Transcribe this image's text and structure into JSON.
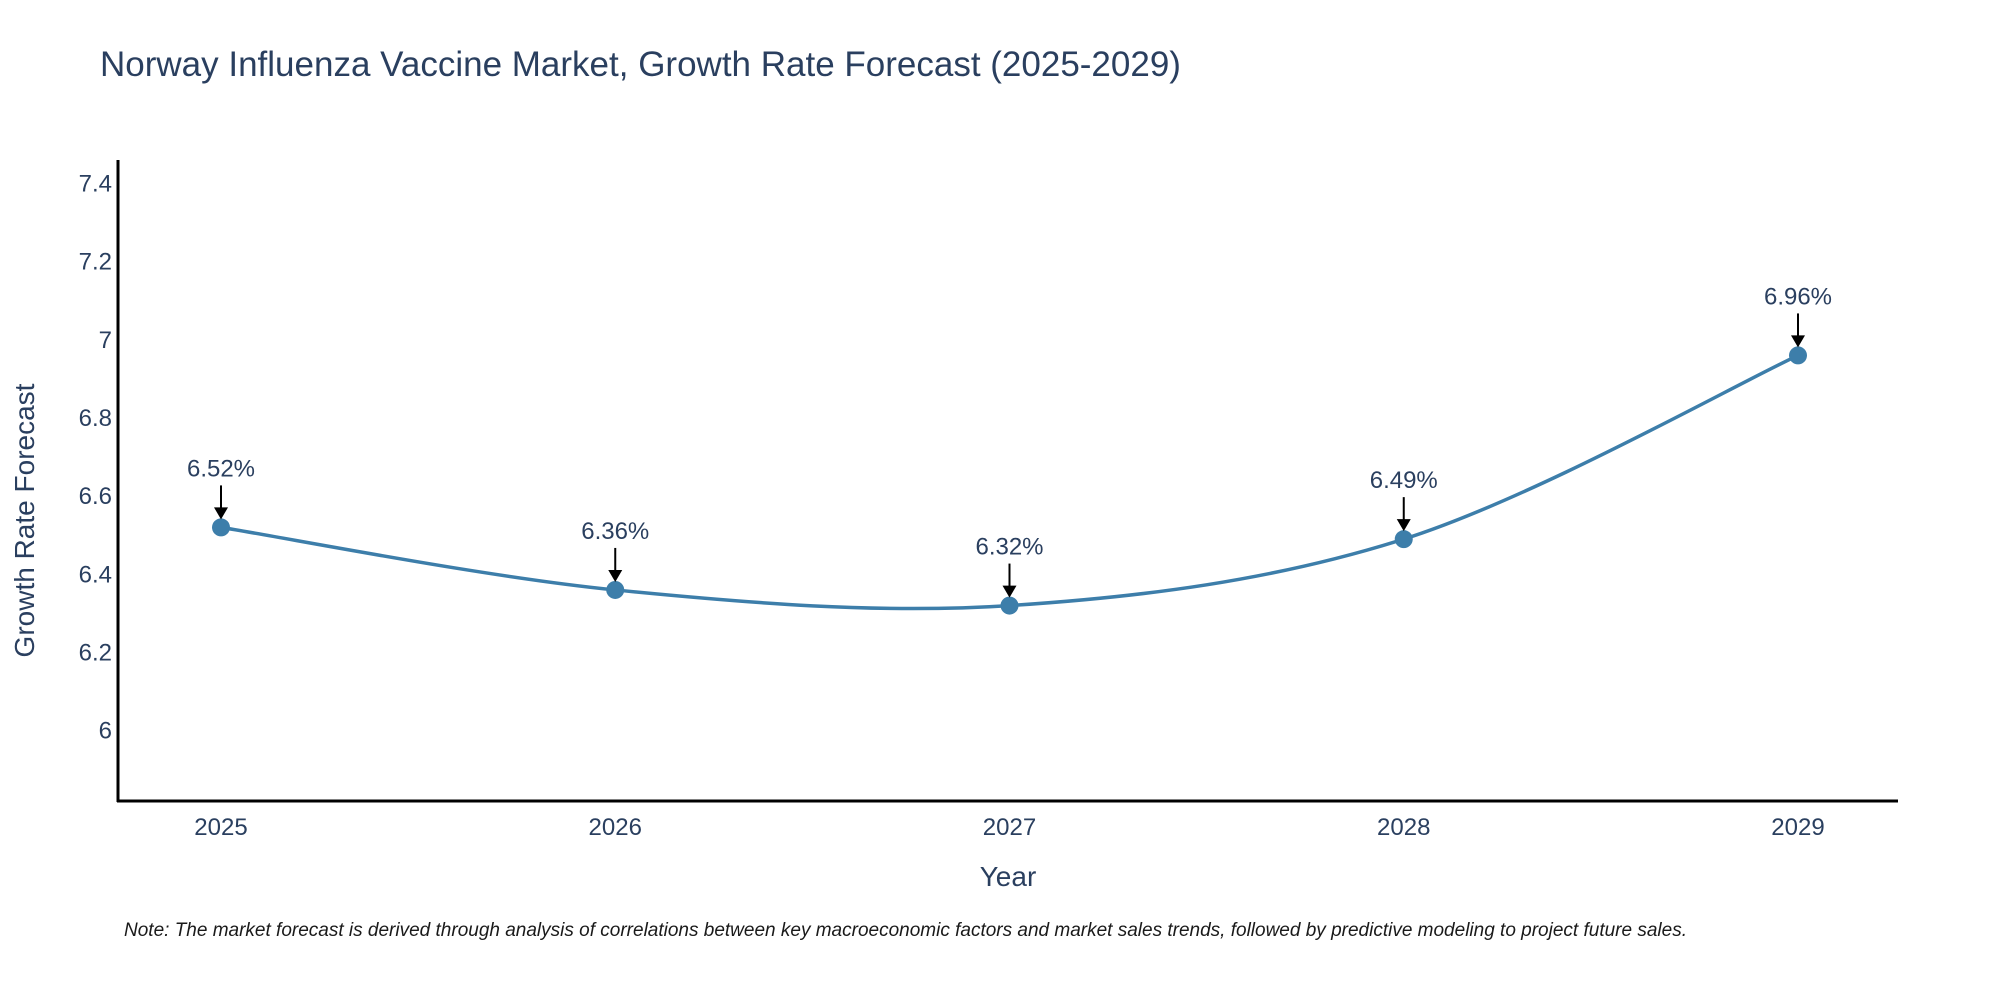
{
  "chart_data": {
    "type": "line",
    "title": "Norway Influenza Vaccine Market, Growth Rate Forecast (2025-2029)",
    "xlabel": "Year",
    "ylabel": "Growth Rate Forecast",
    "categories": [
      "2025",
      "2026",
      "2027",
      "2028",
      "2029"
    ],
    "series": [
      {
        "name": "Growth Rate Forecast",
        "values": [
          6.52,
          6.36,
          6.32,
          6.49,
          6.96
        ],
        "color": "#3d7eaa"
      }
    ],
    "data_labels": [
      "6.52%",
      "6.36%",
      "6.32%",
      "6.49%",
      "6.96%"
    ],
    "y_ticks": [
      6,
      6.2,
      6.4,
      6.6,
      6.8,
      7,
      7.2,
      7.4
    ],
    "y_tick_labels": [
      "6",
      "6.2",
      "6.4",
      "6.6",
      "6.8",
      "7",
      "7.2",
      "7.4"
    ],
    "ylim": [
      5.82,
      7.46
    ],
    "grid": false,
    "line_shape": "spline"
  },
  "note": "Note: The market forecast is derived through analysis of correlations between key macroeconomic factors and market sales trends, followed by predictive modeling to project future sales."
}
